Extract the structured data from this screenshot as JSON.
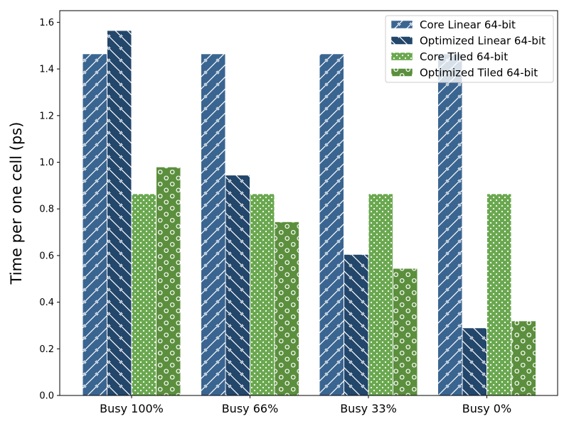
{
  "chart_data": {
    "type": "bar",
    "title": "",
    "xlabel": "",
    "ylabel": "Time per one cell (ps)",
    "ylim": [
      0,
      1.65
    ],
    "yticks": [
      "0.0",
      "0.2",
      "0.4",
      "0.6",
      "0.8",
      "1.0",
      "1.2",
      "1.4",
      "1.6"
    ],
    "categories": [
      "Busy 100%",
      "Busy 66%",
      "Busy 33%",
      "Busy 0%"
    ],
    "grid": false,
    "legend_position": "top-right",
    "series": [
      {
        "name": "Core Linear 64-bit",
        "color": "#3a6591",
        "pattern": "diagonal-forward",
        "values": [
          1.465,
          1.465,
          1.465,
          1.465
        ]
      },
      {
        "name": "Optimized Linear 64-bit",
        "color": "#23466b",
        "pattern": "diagonal-back",
        "values": [
          1.565,
          0.945,
          0.605,
          0.29
        ]
      },
      {
        "name": "Core Tiled 64-bit",
        "color": "#6aa84f",
        "pattern": "dots",
        "values": [
          0.865,
          0.865,
          0.865,
          0.865
        ]
      },
      {
        "name": "Optimized Tiled 64-bit",
        "color": "#5b8f3d",
        "pattern": "circles",
        "values": [
          0.98,
          0.745,
          0.545,
          0.32
        ]
      }
    ]
  }
}
